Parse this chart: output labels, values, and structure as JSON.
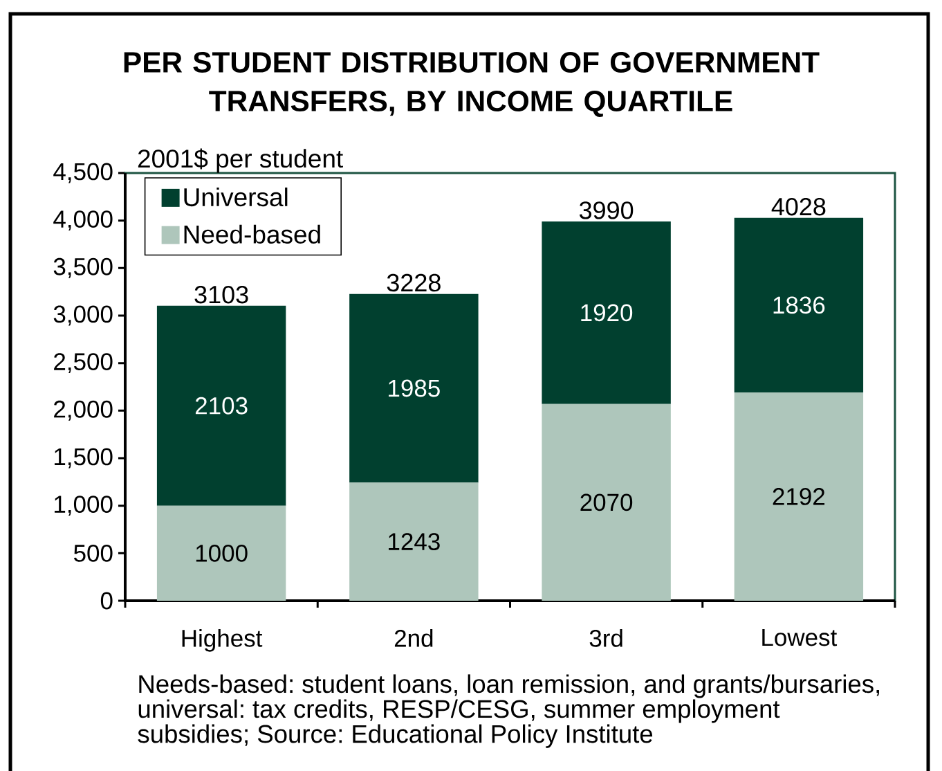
{
  "chart_data": {
    "type": "bar",
    "title": "PER STUDENT DISTRIBUTION OF GOVERNMENT TRANSFERS, BY INCOME QUARTILE",
    "ylabel": "2001$ per student",
    "categories": [
      "Highest",
      "2nd",
      "3rd",
      "Lowest"
    ],
    "series": [
      {
        "name": "Need-based",
        "color": "#aec6bb",
        "values": [
          1000,
          1243,
          2070,
          2192
        ]
      },
      {
        "name": "Universal",
        "color": "#01402f",
        "values": [
          2103,
          1985,
          1920,
          1836
        ]
      }
    ],
    "stacked": true,
    "data_labels": true,
    "totals": [
      "3103",
      "3228",
      "3990",
      "4028"
    ],
    "ylim": [
      0,
      4500
    ],
    "yticks": [
      0,
      500,
      {
        "value": 1000,
        "label": "1,000"
      },
      {
        "value": 1500,
        "label": "1,500"
      },
      {
        "value": 2000,
        "label": "2,000"
      },
      {
        "value": 2500,
        "label": "2,500"
      },
      {
        "value": 3000,
        "label": "3,000"
      },
      {
        "value": 3500,
        "label": "3,500"
      },
      {
        "value": 4000,
        "label": "4,000"
      },
      {
        "value": 4500,
        "label": "4,500"
      }
    ],
    "legend": "top left",
    "grid": false,
    "annotations": [
      "Needs-based: student loans, loan remission, and grants/bursaries, universal: tax credits, RESP/CESG, summer employment subsidies; Source: Educational Policy Institute"
    ]
  }
}
